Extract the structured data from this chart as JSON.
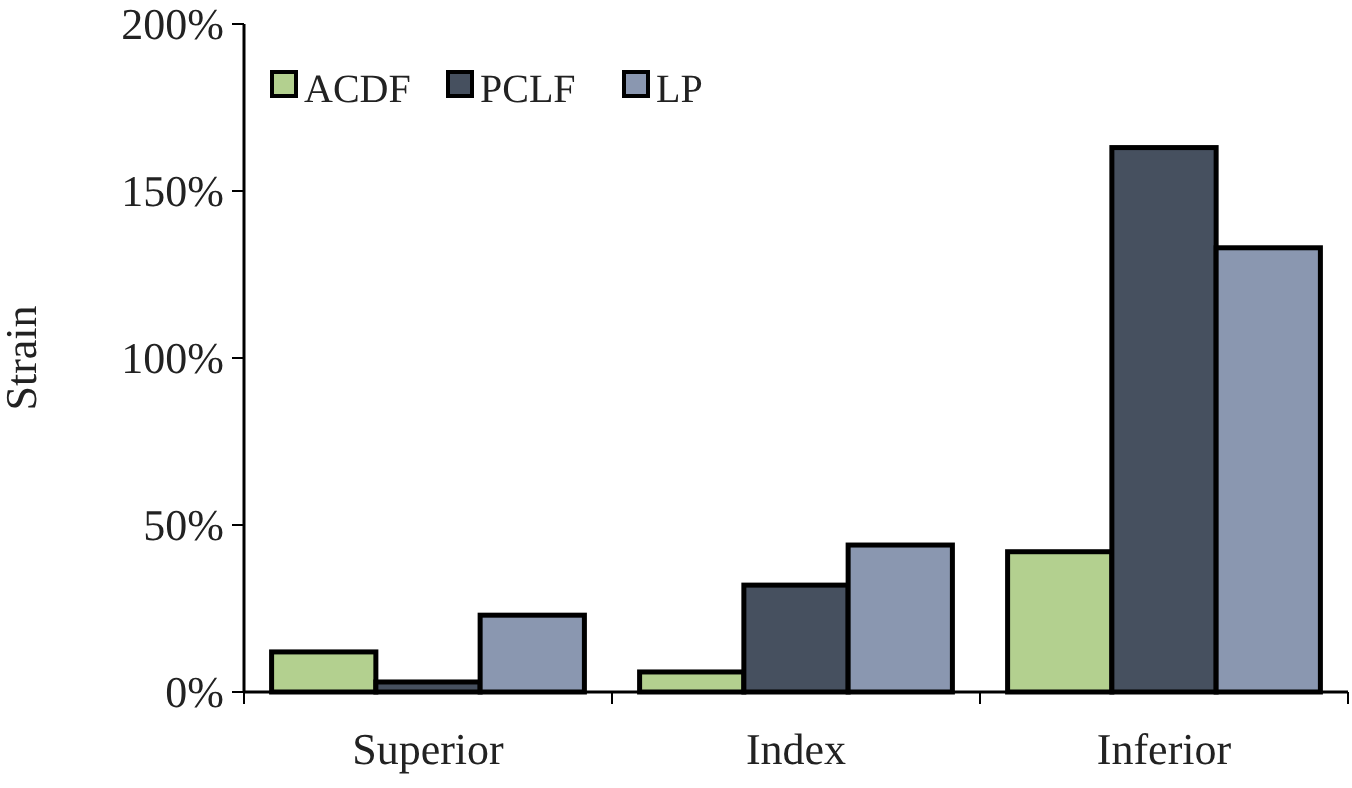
{
  "chart_data": {
    "type": "bar",
    "ylabel": "Strain",
    "categories": [
      "Superior",
      "Index",
      "Inferior"
    ],
    "series": [
      {
        "name": "ACDF",
        "color": "#b3d08f",
        "values": [
          12,
          6,
          42
        ]
      },
      {
        "name": "PCLF",
        "color": "#46505f",
        "values": [
          3,
          32,
          163
        ]
      },
      {
        "name": "LP",
        "color": "#8a97b0",
        "values": [
          23,
          44,
          133
        ]
      }
    ],
    "ylim": [
      0,
      200
    ],
    "yticks": [
      {
        "value": 0,
        "label": "0%"
      },
      {
        "value": 50,
        "label": "50%"
      },
      {
        "value": 100,
        "label": "100%"
      },
      {
        "value": 150,
        "label": "150%"
      },
      {
        "value": 200,
        "label": "200%"
      }
    ],
    "grid": false,
    "legend": "top left"
  }
}
